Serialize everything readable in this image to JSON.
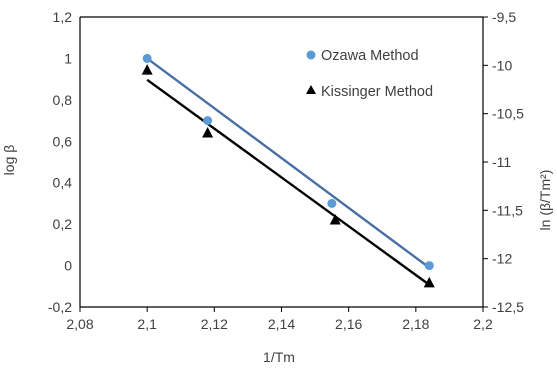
{
  "chart_data": {
    "type": "scatter",
    "xlabel": "1/Tm",
    "ylabel": "log β",
    "y2label": "ln (β/Tm²)",
    "xlim": [
      2.08,
      2.2
    ],
    "ylim": [
      -0.2,
      1.2
    ],
    "y2lim": [
      -12.5,
      -9.5
    ],
    "x_ticks": [
      "2,08",
      "2,1",
      "2,12",
      "2,14",
      "2,16",
      "2,18",
      "2,2"
    ],
    "y_ticks": [
      "-0,2",
      "0",
      "0,2",
      "0,4",
      "0,6",
      "0,8",
      "1",
      "1,2"
    ],
    "y2_ticks": [
      "-12,5",
      "-12",
      "-11,5",
      "-11",
      "-10,5",
      "-10",
      "-9,5"
    ],
    "legend_position": "top-right",
    "series": [
      {
        "name": "Ozawa Method",
        "axis": "left",
        "marker": "circle",
        "color": "#5b9bd5",
        "line_color": "#4a6fa5",
        "x": [
          2.1,
          2.118,
          2.155,
          2.184
        ],
        "y": [
          1.0,
          0.7,
          0.3,
          0.0
        ],
        "trendline": {
          "x": [
            2.1,
            2.184
          ],
          "y": [
            1.0,
            -0.01
          ]
        }
      },
      {
        "name": "Kissinger Method",
        "axis": "right",
        "marker": "triangle",
        "color": "#000000",
        "line_color": "#000000",
        "x": [
          2.1,
          2.118,
          2.156,
          2.184
        ],
        "y": [
          -10.05,
          -10.7,
          -11.6,
          -12.25
        ],
        "trendline": {
          "x": [
            2.1,
            2.184
          ],
          "y": [
            -10.15,
            -12.27
          ]
        }
      }
    ]
  }
}
